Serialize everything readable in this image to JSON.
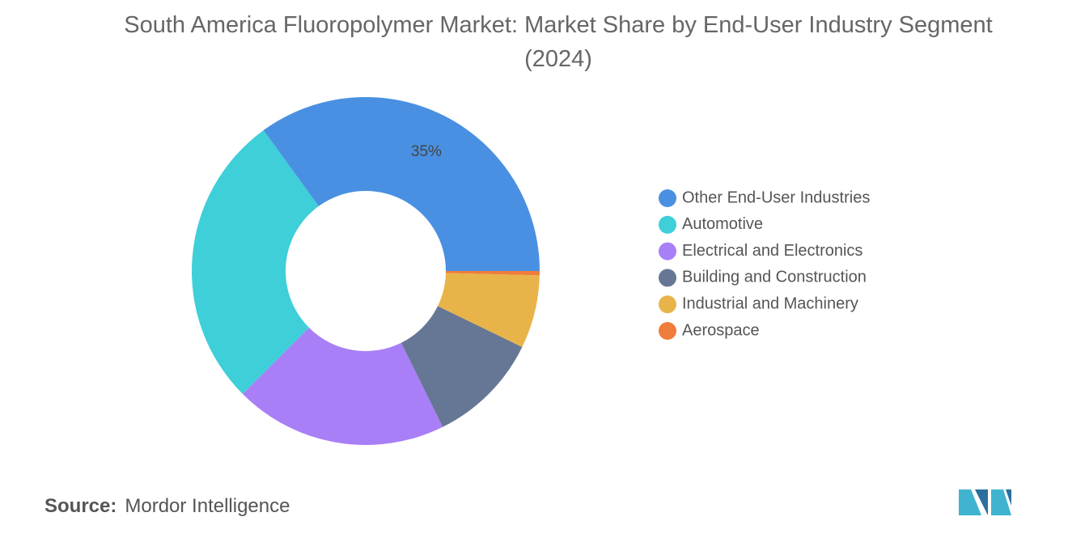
{
  "chart_data": {
    "type": "donut",
    "title": "South America Fluoropolymer Market: Market Share by End-User Industry Segment (2024)",
    "categories": [
      "Other End-User Industries",
      "Automotive",
      "Electrical and Electronics",
      "Building and Construction",
      "Industrial and Machinery",
      "Aerospace"
    ],
    "values": [
      35,
      27.5,
      19.8,
      10.5,
      6.8,
      0.4
    ],
    "value_labels": [
      "35%",
      null,
      null,
      null,
      null,
      null
    ],
    "colors": [
      "#4a90e2",
      "#3ecfd9",
      "#a97ff7",
      "#667795",
      "#e8b44a",
      "#f07d3c"
    ],
    "legend": "right"
  },
  "source": {
    "label": "Source:",
    "name": "Mordor Intelligence"
  }
}
